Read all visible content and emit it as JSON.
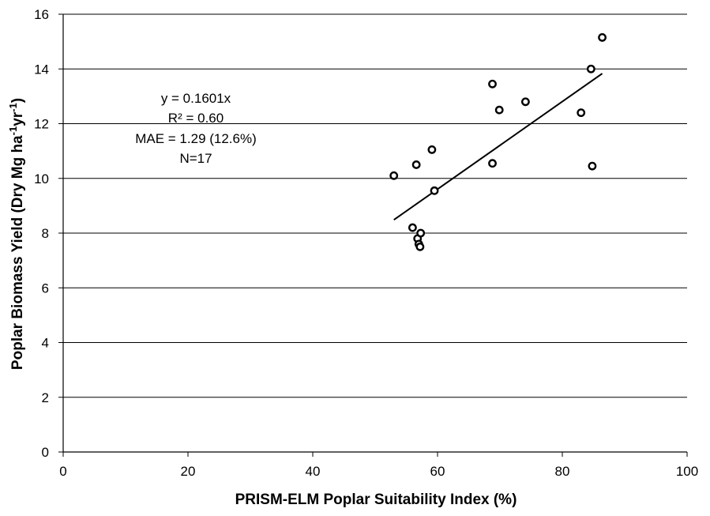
{
  "chart_data": {
    "type": "scatter",
    "title": "",
    "xlabel": "PRISM-ELM Poplar Suitability Index (%)",
    "ylabel_main": "Poplar Biomass Yield (Dry Mg ha",
    "ylabel_sup1": "-1",
    "ylabel_mid": "yr",
    "ylabel_sup2": "-1",
    "ylabel_end": ")",
    "xlim": [
      0,
      100
    ],
    "ylim": [
      0,
      16
    ],
    "xticks": [
      0,
      20,
      40,
      60,
      80,
      100
    ],
    "yticks": [
      0,
      2,
      4,
      6,
      8,
      10,
      12,
      14,
      16
    ],
    "xtick_labels": [
      "0",
      "20",
      "40",
      "60",
      "80",
      "100"
    ],
    "ytick_labels": [
      "0",
      "2",
      "4",
      "6",
      "8",
      "10",
      "12",
      "14",
      "16"
    ],
    "grid": "horizontal",
    "legend": "none",
    "series": [
      {
        "marker": "open-circle",
        "color": "#000000",
        "points": [
          {
            "x": 53.0,
            "y": 10.1
          },
          {
            "x": 56.0,
            "y": 8.2
          },
          {
            "x": 56.6,
            "y": 10.5
          },
          {
            "x": 56.8,
            "y": 7.8
          },
          {
            "x": 57.0,
            "y": 7.6
          },
          {
            "x": 57.2,
            "y": 7.5
          },
          {
            "x": 57.3,
            "y": 8.0
          },
          {
            "x": 59.1,
            "y": 11.05
          },
          {
            "x": 59.5,
            "y": 9.55
          },
          {
            "x": 68.8,
            "y": 13.45
          },
          {
            "x": 68.8,
            "y": 10.55
          },
          {
            "x": 69.9,
            "y": 12.5
          },
          {
            "x": 74.1,
            "y": 12.8
          },
          {
            "x": 83.0,
            "y": 12.4
          },
          {
            "x": 84.6,
            "y": 14.0
          },
          {
            "x": 84.8,
            "y": 10.45
          },
          {
            "x": 86.4,
            "y": 15.15
          }
        ]
      }
    ],
    "trendline": {
      "slope": 0.1601,
      "x_start": 53.0,
      "x_end": 86.4,
      "color": "#000000"
    },
    "annotations": [
      "y = 0.1601x",
      "R² = 0.60",
      "MAE = 1.29 (12.6%)",
      "N=17"
    ]
  }
}
